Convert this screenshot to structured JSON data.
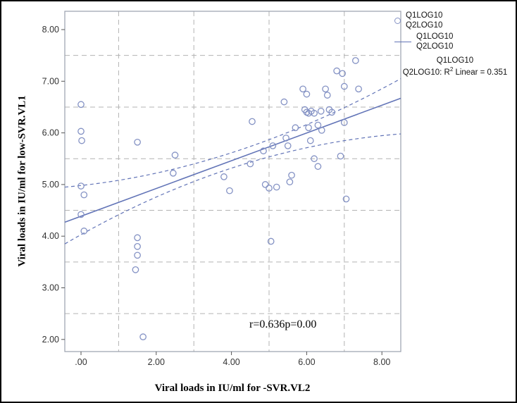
{
  "chart_data": {
    "type": "scatter",
    "title": "",
    "xlabel": "Viral loads in IU/ml for -SVR.VL2",
    "ylabel": "Viral loads in IU/ml for low-SVR.VL1",
    "xlim": [
      -0.43,
      8.5
    ],
    "ylim": [
      1.77,
      8.35
    ],
    "x_ticks": [
      0,
      2,
      4,
      6,
      8
    ],
    "x_tick_labels": [
      ".00",
      "2.00",
      "4.00",
      "6.00",
      "8.00"
    ],
    "y_ticks": [
      2,
      3,
      4,
      5,
      6,
      7,
      8
    ],
    "y_tick_labels": [
      "2.00",
      "3.00",
      "4.00",
      "5.00",
      "6.00",
      "7.00",
      "8.00"
    ],
    "grid_x": [
      1,
      3,
      5,
      7
    ],
    "grid_y": [
      2.5,
      3.5,
      4.5,
      5.5,
      6.5,
      7.5
    ],
    "grid_on": true,
    "legend_position": "top-right-outside",
    "annotation": "r=0.636p=0.00",
    "legend": {
      "marker_entry": [
        "Q1LOG10",
        "Q2LOG10"
      ],
      "line_entry": [
        "Q1LOG10",
        "Q2LOG10"
      ],
      "r2_entry_line1": "Q1LOG10",
      "r2_parts": {
        "pre": "Q2LOG10: R",
        "sup": "2",
        "post": " Linear = 0.351"
      },
      "r2_value": 0.351
    },
    "fit_line": {
      "x1": -0.43,
      "y1": 4.27,
      "x2": 8.5,
      "y2": 6.67
    },
    "ci_upper": {
      "p0": [
        -0.43,
        4.95
      ],
      "c": [
        3.97,
        5.23
      ],
      "p1": [
        8.5,
        7.05
      ]
    },
    "ci_lower": {
      "p0": [
        -0.43,
        3.85
      ],
      "c": [
        3.97,
        5.72
      ],
      "p1": [
        8.5,
        5.98
      ]
    },
    "points": [
      [
        0.0,
        6.55
      ],
      [
        0.0,
        6.03
      ],
      [
        0.02,
        5.85
      ],
      [
        0.0,
        4.97
      ],
      [
        0.08,
        4.8
      ],
      [
        0.0,
        4.42
      ],
      [
        0.08,
        4.1
      ],
      [
        1.5,
        5.82
      ],
      [
        1.5,
        3.97
      ],
      [
        1.5,
        3.8
      ],
      [
        1.5,
        3.63
      ],
      [
        1.45,
        3.35
      ],
      [
        1.65,
        2.05
      ],
      [
        2.5,
        5.57
      ],
      [
        2.45,
        5.22
      ],
      [
        3.8,
        5.15
      ],
      [
        3.95,
        4.88
      ],
      [
        4.5,
        5.4
      ],
      [
        4.55,
        6.22
      ],
      [
        4.85,
        5.65
      ],
      [
        4.9,
        5.0
      ],
      [
        5.0,
        4.93
      ],
      [
        5.05,
        3.9
      ],
      [
        5.2,
        4.95
      ],
      [
        5.1,
        5.75
      ],
      [
        5.4,
        6.6
      ],
      [
        5.45,
        5.9
      ],
      [
        5.5,
        5.75
      ],
      [
        5.55,
        5.05
      ],
      [
        5.6,
        5.18
      ],
      [
        5.7,
        6.1
      ],
      [
        5.9,
        6.85
      ],
      [
        6.0,
        6.75
      ],
      [
        5.95,
        6.45
      ],
      [
        6.0,
        6.4
      ],
      [
        6.05,
        6.38
      ],
      [
        6.12,
        6.42
      ],
      [
        6.2,
        6.38
      ],
      [
        6.05,
        6.1
      ],
      [
        6.1,
        5.85
      ],
      [
        6.2,
        5.5
      ],
      [
        6.3,
        5.35
      ],
      [
        6.3,
        6.15
      ],
      [
        6.38,
        6.42
      ],
      [
        6.4,
        6.05
      ],
      [
        6.5,
        6.85
      ],
      [
        6.55,
        6.73
      ],
      [
        6.6,
        6.45
      ],
      [
        6.67,
        6.4
      ],
      [
        6.8,
        7.2
      ],
      [
        6.95,
        7.15
      ],
      [
        7.0,
        6.9
      ],
      [
        7.0,
        6.2
      ],
      [
        6.9,
        5.55
      ],
      [
        7.05,
        4.72
      ],
      [
        7.3,
        7.4
      ],
      [
        7.38,
        6.85
      ]
    ],
    "colors": {
      "marker": "#8492c4",
      "line": "#6274b7",
      "grid": "#b3b3b3",
      "frame": "#9aa0ad",
      "text": "#333333"
    }
  }
}
